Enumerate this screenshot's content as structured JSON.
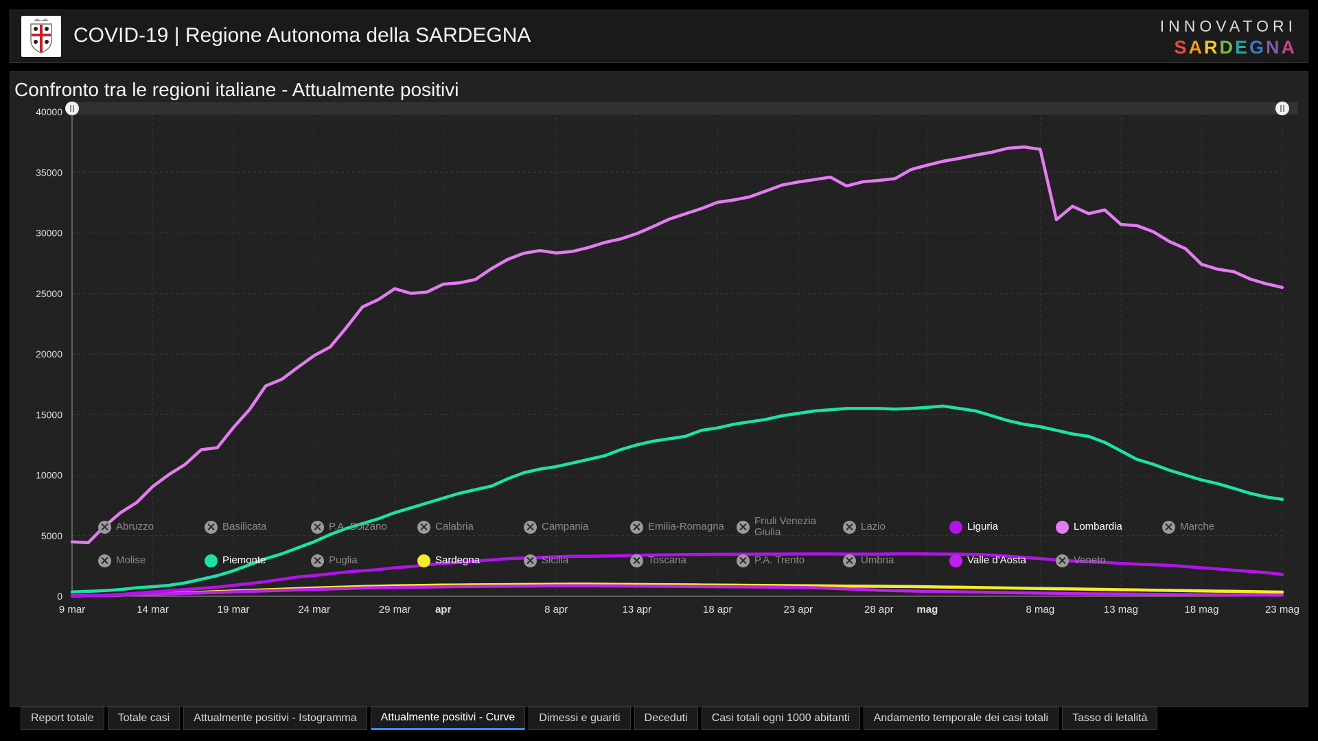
{
  "header": {
    "title": "COVID-19 | Regione Autonoma della SARDEGNA",
    "brand_top": "INNOVATORI",
    "brand_letters": [
      {
        "char": "S",
        "color": "#e84a3c"
      },
      {
        "char": "A",
        "color": "#f39a26"
      },
      {
        "char": "R",
        "color": "#f6c92d"
      },
      {
        "char": "D",
        "color": "#7dbb42"
      },
      {
        "char": "E",
        "color": "#2aa7a0"
      },
      {
        "char": "G",
        "color": "#3a7fc1"
      },
      {
        "char": "N",
        "color": "#7b5ea7"
      },
      {
        "char": "A",
        "color": "#c1458e"
      }
    ]
  },
  "chart_data": {
    "type": "line",
    "title": "Confronto tra le regioni italiane - Attualmente positivi",
    "ylim": [
      0,
      40000
    ],
    "yticks": [
      "0",
      "5000",
      "10000",
      "15000",
      "20000",
      "25000",
      "30000",
      "35000",
      "40000"
    ],
    "x_start": "9 mar",
    "x_end": "23 mag",
    "xticks": [
      {
        "label": "9 mar",
        "day": 0,
        "bold": false
      },
      {
        "label": "14 mar",
        "day": 5,
        "bold": false
      },
      {
        "label": "19 mar",
        "day": 10,
        "bold": false
      },
      {
        "label": "24 mar",
        "day": 15,
        "bold": false
      },
      {
        "label": "29 mar",
        "day": 20,
        "bold": false
      },
      {
        "label": "apr",
        "day": 23,
        "bold": true
      },
      {
        "label": "8 apr",
        "day": 30,
        "bold": false
      },
      {
        "label": "13 apr",
        "day": 35,
        "bold": false
      },
      {
        "label": "18 apr",
        "day": 40,
        "bold": false
      },
      {
        "label": "23 apr",
        "day": 45,
        "bold": false
      },
      {
        "label": "28 apr",
        "day": 50,
        "bold": false
      },
      {
        "label": "mag",
        "day": 53,
        "bold": true
      },
      {
        "label": "8 mag",
        "day": 60,
        "bold": false
      },
      {
        "label": "13 mag",
        "day": 65,
        "bold": false
      },
      {
        "label": "18 mag",
        "day": 70,
        "bold": false
      },
      {
        "label": "23 mag",
        "day": 75,
        "bold": false
      }
    ],
    "series": [
      {
        "name": "Lombardia",
        "color": "#e37cf1",
        "values": [
          4490,
          4427,
          5763,
          6896,
          7732,
          9059,
          10043,
          10881,
          12095,
          12266,
          13938,
          15420,
          17370,
          17913,
          18910,
          19871,
          20591,
          22189,
          23895,
          24509,
          25392,
          25006,
          25124,
          25765,
          25876,
          26156,
          27062,
          27819,
          28324,
          28545,
          28343,
          28470,
          28796,
          29209,
          29506,
          29944,
          30524,
          31132,
          31580,
          32012,
          32526,
          32722,
          32983,
          33461,
          33957,
          34202,
          34404,
          34605,
          33876,
          34222,
          34336,
          34484,
          35233,
          35600,
          35925,
          36160,
          36433,
          36670,
          37000,
          37100,
          36900,
          31100,
          32200,
          31600,
          31900,
          30700,
          30600,
          30100,
          29300,
          28700,
          27400,
          27000,
          26800,
          26200,
          25800,
          25500
        ]
      },
      {
        "name": "Piemonte",
        "color": "#1de0a8",
        "values": [
          350,
          400,
          460,
          550,
          700,
          790,
          900,
          1100,
          1400,
          1700,
          2100,
          2600,
          3100,
          3500,
          4000,
          4500,
          5100,
          5600,
          6000,
          6400,
          6900,
          7300,
          7700,
          8100,
          8500,
          8800,
          9100,
          9700,
          10200,
          10500,
          10700,
          11000,
          11300,
          11600,
          12100,
          12500,
          12800,
          13000,
          13200,
          13700,
          13900,
          14200,
          14400,
          14600,
          14900,
          15100,
          15300,
          15400,
          15500,
          15500,
          15500,
          15450,
          15500,
          15600,
          15700,
          15500,
          15300,
          14900,
          14500,
          14200,
          14000,
          13700,
          13400,
          13200,
          12700,
          12000,
          11300,
          10900,
          10400,
          10000,
          9600,
          9300,
          8900,
          8500,
          8200,
          8000
        ]
      },
      {
        "name": "Valle d'Aosta",
        "color": "#c020f0",
        "values": [
          30,
          40,
          60,
          90,
          120,
          160,
          200,
          240,
          280,
          320,
          360,
          400,
          440,
          480,
          520,
          560,
          600,
          640,
          680,
          700,
          720,
          740,
          760,
          780,
          800,
          810,
          820,
          830,
          840,
          850,
          860,
          860,
          860,
          850,
          850,
          840,
          830,
          820,
          810,
          800,
          790,
          780,
          770,
          760,
          740,
          720,
          700,
          650,
          600,
          550,
          500,
          460,
          430,
          400,
          380,
          360,
          340,
          320,
          300,
          280,
          260,
          240,
          220,
          200,
          190,
          180,
          170,
          160,
          150,
          140,
          130,
          120,
          110,
          100,
          95,
          90
        ]
      },
      {
        "name": "Liguria",
        "color": "#b014e8",
        "values": [
          20,
          40,
          80,
          150,
          250,
          350,
          450,
          550,
          650,
          750,
          900,
          1050,
          1200,
          1400,
          1600,
          1700,
          1850,
          2000,
          2100,
          2200,
          2350,
          2450,
          2600,
          2700,
          2800,
          2900,
          3000,
          3100,
          3150,
          3200,
          3250,
          3300,
          3300,
          3320,
          3350,
          3380,
          3400,
          3420,
          3440,
          3450,
          3460,
          3460,
          3470,
          3480,
          3480,
          3490,
          3490,
          3490,
          3480,
          3480,
          3480,
          3500,
          3500,
          3490,
          3480,
          3470,
          3450,
          3400,
          3300,
          3200,
          3100,
          3000,
          2900,
          2850,
          2800,
          2700,
          2650,
          2600,
          2550,
          2450,
          2350,
          2250,
          2150,
          2050,
          1950,
          1800
        ]
      },
      {
        "name": "Sardegna",
        "color": "#f5ec2a",
        "values": [
          20,
          40,
          60,
          90,
          130,
          180,
          230,
          280,
          330,
          380,
          430,
          480,
          530,
          580,
          630,
          680,
          720,
          760,
          800,
          830,
          860,
          880,
          900,
          920,
          930,
          940,
          950,
          960,
          970,
          980,
          990,
          1000,
          1000,
          990,
          980,
          970,
          960,
          950,
          940,
          930,
          920,
          910,
          900,
          890,
          880,
          870,
          860,
          850,
          840,
          830,
          820,
          810,
          800,
          780,
          760,
          740,
          720,
          700,
          680,
          660,
          640,
          620,
          600,
          580,
          560,
          540,
          520,
          500,
          480,
          460,
          440,
          420,
          400,
          380,
          360,
          340
        ]
      }
    ]
  },
  "legend": {
    "row1": [
      {
        "label": "Abruzzo",
        "active": false,
        "color": "#9a9a9a"
      },
      {
        "label": "Basilicata",
        "active": false,
        "color": "#9a9a9a"
      },
      {
        "label": "P.A. Bolzano",
        "active": false,
        "color": "#9a9a9a"
      },
      {
        "label": "Calabria",
        "active": false,
        "color": "#9a9a9a"
      },
      {
        "label": "Campania",
        "active": false,
        "color": "#9a9a9a"
      },
      {
        "label": "Emilia-Romagna",
        "active": false,
        "color": "#9a9a9a"
      },
      {
        "label": "Friuli Venezia Giulia",
        "active": false,
        "color": "#9a9a9a"
      },
      {
        "label": "Lazio",
        "active": false,
        "color": "#9a9a9a"
      },
      {
        "label": "Liguria",
        "active": true,
        "color": "#b014e8"
      },
      {
        "label": "Lombardia",
        "active": true,
        "color": "#e37cf1"
      },
      {
        "label": "Marche",
        "active": false,
        "color": "#9a9a9a"
      }
    ],
    "row2": [
      {
        "label": "Molise",
        "active": false,
        "color": "#9a9a9a"
      },
      {
        "label": "Piemonte",
        "active": true,
        "color": "#1de0a8"
      },
      {
        "label": "Puglia",
        "active": false,
        "color": "#9a9a9a"
      },
      {
        "label": "Sardegna",
        "active": true,
        "color": "#f5ec2a"
      },
      {
        "label": "Sicilia",
        "active": false,
        "color": "#9a9a9a"
      },
      {
        "label": "Toscana",
        "active": false,
        "color": "#9a9a9a"
      },
      {
        "label": "P.A. Trento",
        "active": false,
        "color": "#9a9a9a"
      },
      {
        "label": "Umbria",
        "active": false,
        "color": "#9a9a9a"
      },
      {
        "label": "Valle d'Aosta",
        "active": true,
        "color": "#c020f0"
      },
      {
        "label": "Veneto",
        "active": false,
        "color": "#9a9a9a"
      }
    ]
  },
  "tabs": [
    {
      "label": "Report totale",
      "active": false
    },
    {
      "label": "Totale casi",
      "active": false
    },
    {
      "label": "Attualmente positivi - Istogramma",
      "active": false
    },
    {
      "label": "Attualmente positivi - Curve",
      "active": true
    },
    {
      "label": "Dimessi e guariti",
      "active": false
    },
    {
      "label": "Deceduti",
      "active": false
    },
    {
      "label": "Casi totali ogni 1000 abitanti",
      "active": false
    },
    {
      "label": "Andamento temporale dei casi totali",
      "active": false
    },
    {
      "label": "Tasso di letalità",
      "active": false
    }
  ]
}
